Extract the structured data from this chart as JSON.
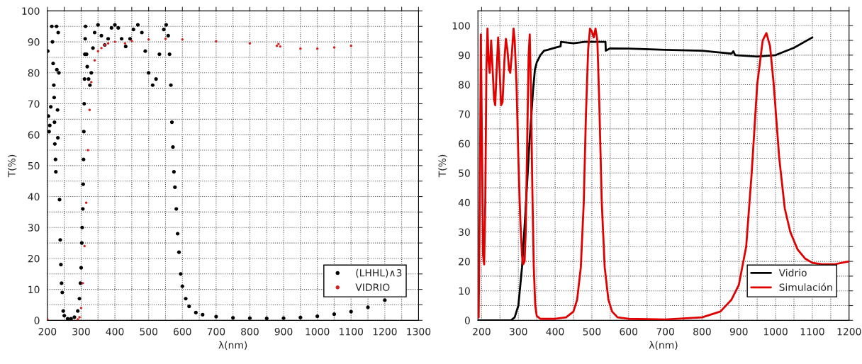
{
  "chart_data": [
    {
      "type": "scatter",
      "xlabel": "λ(nm)",
      "ylabel": "T(%)",
      "xlim": [
        200,
        1300
      ],
      "ylim": [
        0,
        100
      ],
      "xticks": [
        200,
        {
          "value": 250,
          "label": null
        },
        300,
        {
          "value": 350,
          "label": null
        },
        400,
        {
          "value": 450,
          "label": null
        },
        500,
        {
          "value": 550,
          "label": null
        },
        600,
        {
          "value": 650,
          "label": null
        },
        700,
        {
          "value": 750,
          "label": null
        },
        800,
        {
          "value": 850,
          "label": null
        },
        900,
        {
          "value": 950,
          "label": null
        },
        1000,
        {
          "value": 1050,
          "label": null
        },
        1100,
        {
          "value": 1150,
          "label": null
        },
        1200,
        {
          "value": 1250,
          "label": null
        },
        1300
      ],
      "yticks": [
        0,
        {
          "value": 5,
          "label": null
        },
        10,
        {
          "value": 15,
          "label": null
        },
        20,
        {
          "value": 25,
          "label": null
        },
        30,
        {
          "value": 35,
          "label": null
        },
        40,
        {
          "value": 45,
          "label": null
        },
        50,
        {
          "value": 55,
          "label": null
        },
        60,
        {
          "value": 65,
          "label": null
        },
        70,
        {
          "value": 75,
          "label": null
        },
        80,
        {
          "value": 85,
          "label": null
        },
        90,
        {
          "value": 95,
          "label": null
        },
        100
      ],
      "grid": true,
      "legend": "bottom right",
      "marker": "circle",
      "series": [
        {
          "name": "(LHHL)∧3",
          "color": "#000000",
          "x": [
            201,
            203,
            205,
            207,
            210,
            213,
            215,
            217,
            219,
            220,
            221,
            222,
            224,
            225,
            227,
            228,
            230,
            231,
            232,
            234,
            236,
            238,
            240,
            242,
            244,
            247,
            250,
            260,
            270,
            280,
            290,
            295,
            298,
            300,
            302,
            303,
            305,
            306,
            307,
            308,
            309,
            310,
            311,
            312,
            313,
            316,
            318,
            322,
            326,
            330,
            335,
            340,
            350,
            360,
            370,
            380,
            390,
            400,
            410,
            420,
            432,
            445,
            455,
            468,
            480,
            490,
            500,
            512,
            522,
            532,
            545,
            552,
            558,
            562,
            566,
            569,
            572,
            575,
            578,
            582,
            586,
            590,
            595,
            600,
            610,
            620,
            640,
            660,
            700,
            750,
            800,
            850,
            900,
            950,
            1000,
            1050,
            1100,
            1150,
            1200
          ],
          "values": [
            87,
            66,
            61,
            63,
            69,
            95,
            90,
            83,
            76,
            72,
            64,
            57,
            52,
            48,
            95,
            81,
            68,
            59,
            93,
            80,
            39,
            26,
            18,
            12,
            9,
            3,
            1.5,
            0.5,
            0.5,
            1,
            3,
            7,
            12,
            17,
            25,
            30,
            36,
            44,
            52,
            61,
            70,
            78,
            86,
            91,
            95,
            86,
            82,
            78,
            76,
            80,
            88,
            93,
            95.5,
            92,
            89,
            91,
            94.5,
            95.5,
            94.5,
            91,
            88.5,
            91,
            94,
            95.5,
            93,
            87,
            80,
            76,
            78,
            86,
            94,
            95.5,
            92,
            86,
            76,
            64,
            56,
            48,
            43,
            36,
            28,
            22,
            15,
            11,
            7,
            4.5,
            2.5,
            1.8,
            1.2,
            0.8,
            0.7,
            0.6,
            0.7,
            0.9,
            1.3,
            2,
            2.8,
            4.2,
            6.5
          ]
        },
        {
          "name": "VIDRIO",
          "color": "#d62020",
          "x": [
            200,
            290,
            295,
            300,
            305,
            310,
            315,
            320,
            325,
            330,
            340,
            350,
            360,
            370,
            380,
            400,
            430,
            450,
            500,
            550,
            600,
            700,
            800,
            880,
            885,
            890,
            950,
            1000,
            1050,
            1100
          ],
          "values": [
            0.3,
            0.3,
            1,
            4,
            12,
            24,
            38,
            55,
            68,
            77,
            84,
            87,
            88,
            89,
            89.5,
            90,
            89.5,
            90.3,
            90.8,
            91,
            90.8,
            90.2,
            89.5,
            88.7,
            89.3,
            88.5,
            87.8,
            87.8,
            88.2,
            88.7
          ]
        }
      ]
    },
    {
      "type": "line",
      "xlabel": "λ(nm)",
      "ylabel": "T(%)",
      "xlim": [
        190,
        1200
      ],
      "ylim": [
        0,
        105
      ],
      "xticks": [
        200,
        {
          "value": 250,
          "label": null
        },
        300,
        {
          "value": 350,
          "label": null
        },
        400,
        {
          "value": 450,
          "label": null
        },
        500,
        {
          "value": 550,
          "label": null
        },
        600,
        {
          "value": 650,
          "label": null
        },
        700,
        {
          "value": 750,
          "label": null
        },
        800,
        {
          "value": 850,
          "label": null
        },
        900,
        {
          "value": 950,
          "label": null
        },
        1000,
        {
          "value": 1050,
          "label": null
        },
        1100,
        {
          "value": 1150,
          "label": null
        },
        1200
      ],
      "yticks": [
        0,
        {
          "value": 5,
          "label": null
        },
        10,
        {
          "value": 15,
          "label": null
        },
        20,
        {
          "value": 25,
          "label": null
        },
        30,
        {
          "value": 35,
          "label": null
        },
        40,
        {
          "value": 45,
          "label": null
        },
        50,
        {
          "value": 55,
          "label": null
        },
        60,
        {
          "value": 65,
          "label": null
        },
        70,
        {
          "value": 75,
          "label": null
        },
        80,
        {
          "value": 85,
          "label": null
        },
        90,
        {
          "value": 95,
          "label": null
        },
        100
      ],
      "grid": true,
      "legend": "bottom right",
      "line_style": "solid",
      "series": [
        {
          "name": "Vidrio",
          "color": "#000000",
          "x": [
            190,
            280,
            290,
            300,
            310,
            320,
            330,
            340,
            345,
            350,
            360,
            370,
            380,
            400,
            415,
            416,
            450,
            480,
            500,
            537,
            538,
            550,
            600,
            700,
            800,
            880,
            885,
            890,
            950,
            1000,
            1050,
            1100
          ],
          "values": [
            0,
            0,
            1,
            5,
            18,
            38,
            60,
            78,
            85,
            87.5,
            90,
            91.5,
            91.8,
            92.5,
            93,
            94.5,
            94,
            94.5,
            94.5,
            94.5,
            91.5,
            92.3,
            92.2,
            91.8,
            91.5,
            90.5,
            91.3,
            90,
            89.5,
            90,
            92.5,
            96
          ]
        },
        {
          "name": "Simulación",
          "color": "#e00000",
          "x": [
            192,
            195,
            198,
            201,
            204,
            207,
            210,
            213,
            216,
            219,
            222,
            226,
            230,
            234,
            237,
            241,
            245,
            249,
            253,
            257,
            262,
            266,
            270,
            275,
            278,
            282,
            287,
            290,
            295,
            300,
            305,
            310,
            313,
            317,
            320,
            324,
            328,
            331,
            334,
            338,
            342,
            346,
            350,
            360,
            400,
            430,
            450,
            460,
            470,
            478,
            484,
            490,
            495,
            500,
            505,
            510,
            515,
            520,
            527,
            535,
            545,
            555,
            570,
            600,
            700,
            800,
            850,
            880,
            900,
            920,
            935,
            950,
            965,
            975,
            985,
            995,
            1010,
            1025,
            1040,
            1060,
            1080,
            1100,
            1130,
            1160,
            1180,
            1200
          ],
          "values": [
            1,
            40,
            97,
            60,
            22,
            19,
            40,
            85,
            99,
            88,
            84,
            95,
            85,
            75,
            73,
            85,
            96,
            85,
            73,
            74,
            88,
            95.5,
            92,
            85,
            84,
            90,
            99,
            95,
            80,
            55,
            35,
            22,
            19,
            20,
            30,
            60,
            90,
            97,
            80,
            45,
            18,
            5,
            1.5,
            0.5,
            0.5,
            1,
            3,
            7,
            18,
            40,
            70,
            92,
            99,
            98,
            96,
            99,
            95,
            75,
            40,
            18,
            7,
            3,
            1,
            0.5,
            0.3,
            1,
            3,
            7,
            12,
            25,
            50,
            80,
            95,
            97.5,
            93,
            80,
            55,
            38,
            30,
            24,
            21,
            19.5,
            19,
            19,
            19.5,
            20
          ]
        }
      ]
    }
  ]
}
